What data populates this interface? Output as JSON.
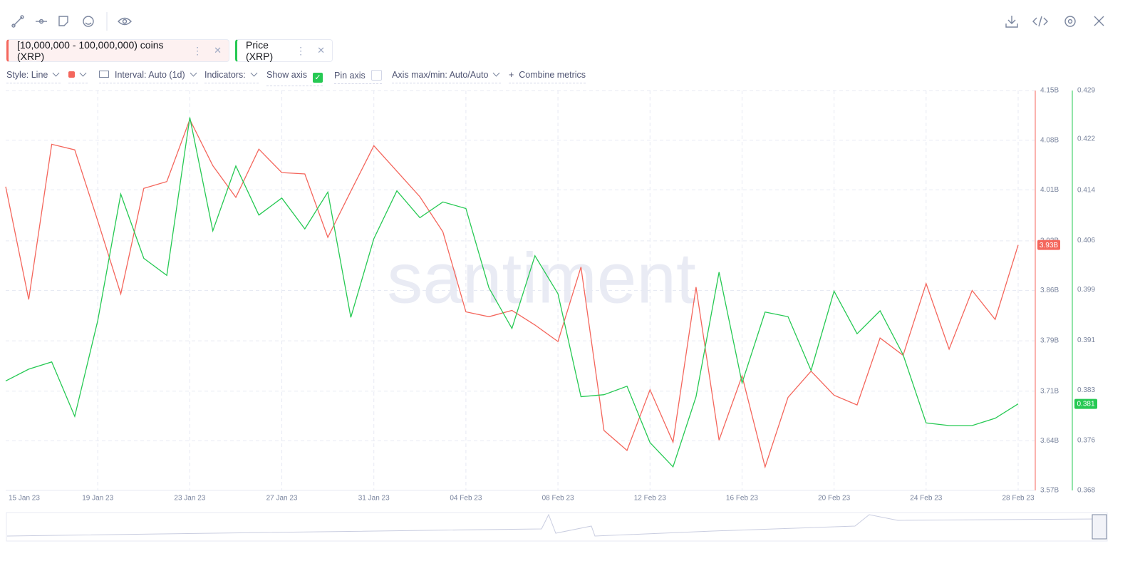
{
  "toolbar": {
    "style": "Style: Line",
    "interval": "Interval: Auto (1d)",
    "indicators": "Indicators:",
    "show_axis": "Show axis",
    "pin_axis": "Pin axis",
    "axis_minmax": "Axis max/min: Auto/Auto",
    "combine": "Combine metrics",
    "watermark": "santiment"
  },
  "chart_data": {
    "type": "line",
    "grid": true,
    "categories": [
      "15 Jan 23",
      null,
      null,
      null,
      "19 Jan 23",
      null,
      null,
      null,
      "23 Jan 23",
      null,
      null,
      null,
      "27 Jan 23",
      null,
      null,
      null,
      "31 Jan 23",
      null,
      null,
      null,
      "04 Feb 23",
      null,
      null,
      null,
      "08 Feb 23",
      null,
      null,
      null,
      "12 Feb 23",
      null,
      null,
      null,
      "16 Feb 23",
      null,
      null,
      null,
      "20 Feb 23",
      null,
      null,
      null,
      "24 Feb 23",
      null,
      null,
      null,
      "28 Feb 23"
    ],
    "series": [
      {
        "name": "[10,000,000 - 100,000,000) coins (XRP)",
        "color": "#f4665c",
        "axis": "y",
        "badge": "3.93B",
        "values": [
          4010500000,
          3847000000,
          4072000000,
          4064000000,
          3961000000,
          3855000000,
          4008000000,
          4018000000,
          4108000000,
          4041000000,
          3995000000,
          4065000000,
          4031000000,
          4029000000,
          3937000000,
          4004000000,
          4070000000,
          4033000000,
          3996000000,
          3945000000,
          3829000000,
          3822000000,
          3831000000,
          3810000000,
          3786000000,
          3894000000,
          3657000000,
          3628000000,
          3716000000,
          3640000000,
          3865000000,
          3643000000,
          3736000000,
          3604000000,
          3705000000,
          3743000000,
          3708000000,
          3694000000,
          3791000000,
          3766000000,
          3870000000,
          3775000000,
          3860000000,
          3818000000,
          3926000000
        ]
      },
      {
        "name": "Price (XRP)",
        "color": "#26c953",
        "axis": "y2",
        "badge": "0.381",
        "values": [
          0.3847,
          0.3865,
          0.3876,
          0.3793,
          0.3939,
          0.4132,
          0.4034,
          0.4008,
          0.4249,
          0.4076,
          0.4175,
          0.41,
          0.4126,
          0.4079,
          0.4135,
          0.3944,
          0.4064,
          0.4137,
          0.4096,
          0.412,
          0.411,
          0.3989,
          0.3927,
          0.4038,
          0.398,
          0.3823,
          0.3826,
          0.3839,
          0.3753,
          0.3716,
          0.3823,
          0.4013,
          0.3844,
          0.3952,
          0.3945,
          0.3863,
          0.3984,
          0.3919,
          0.3954,
          0.3887,
          0.3783,
          0.3779,
          0.3779,
          0.379,
          0.3812
        ]
      }
    ],
    "ylim": [
      3570000000,
      4150000000
    ],
    "yticks": [
      {
        "value": 3570000000,
        "label": "3.57B"
      },
      {
        "value": 3642000000,
        "label": "3.64B"
      },
      {
        "value": 3714000000,
        "label": "3.71B"
      },
      {
        "value": 3787000000,
        "label": "3.79B"
      },
      {
        "value": 3860000000,
        "label": "3.86B"
      },
      {
        "value": 3932000000,
        "label": "3.93B"
      },
      {
        "value": 4006000000,
        "label": "4.01B"
      },
      {
        "value": 4078000000,
        "label": "4.08B"
      },
      {
        "value": 4150000000,
        "label": "4.15B"
      }
    ],
    "y2lim": [
      0.368,
      0.429
    ],
    "y2ticks": [
      {
        "value": 0.368,
        "label": "0.368"
      },
      {
        "value": 0.3756,
        "label": "0.376"
      },
      {
        "value": 0.3833,
        "label": "0.383"
      },
      {
        "value": 0.3909,
        "label": "0.391"
      },
      {
        "value": 0.3986,
        "label": "0.399"
      },
      {
        "value": 0.4061,
        "label": "0.406"
      },
      {
        "value": 0.4138,
        "label": "0.414"
      },
      {
        "value": 0.4216,
        "label": "0.422"
      },
      {
        "value": 0.429,
        "label": "0.429"
      }
    ]
  }
}
